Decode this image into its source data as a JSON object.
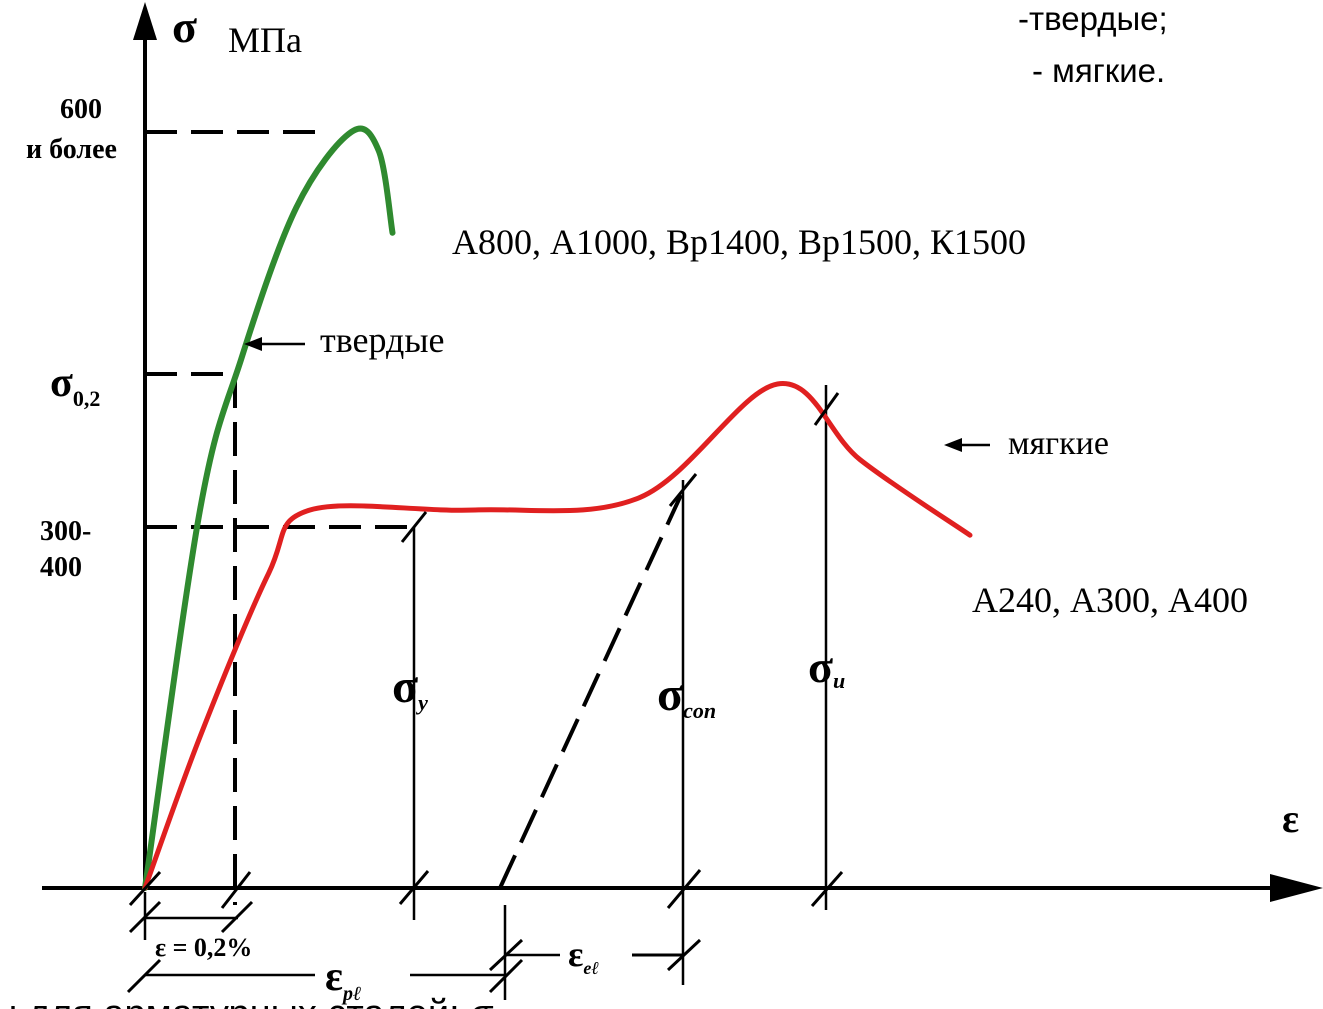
{
  "legend_lines": [
    "-твердые;",
    "- мягкие."
  ],
  "axes": {
    "y_symbol": "σ",
    "y_unit": "МПа",
    "x_symbol": "ε"
  },
  "y_ticks": {
    "top_line1": "600",
    "top_line2": "и более",
    "sigma02_main": "σ",
    "sigma02_sub": "0,2",
    "mid_line1": "300-",
    "mid_line2": "400"
  },
  "curve_labels": {
    "hard_grades": "А800, А1000, Вр1400, Вр1500, К1500",
    "hard_label": "твердые",
    "soft_label": "мягкие",
    "soft_grades": "А240, А300, А400"
  },
  "point_labels": {
    "sigma_y_main": "σ",
    "sigma_y_sub": "y",
    "sigma_con_main": "σ",
    "sigma_con_sub": "con",
    "sigma_u_main": "σ",
    "sigma_u_sub": "u"
  },
  "x_dims": {
    "eps02": "ε = 0,2%",
    "eps_pl_main": "ε",
    "eps_pl_sub": "pℓ",
    "eps_el_main": "ε",
    "eps_el_sub": "eℓ"
  },
  "footer_text": "ы          для арматурных сталей: σ",
  "colors": {
    "hard_curve": "#2f8a2f",
    "soft_curve": "#e02020",
    "ink": "#000000"
  },
  "chart_data": {
    "type": "line",
    "title": "",
    "xlabel": "ε",
    "ylabel": "σ МПа",
    "series": [
      {
        "name": "твердые",
        "color": "#2f8a2f",
        "x": [
          0,
          0.2,
          0.35,
          0.55,
          0.75,
          0.85,
          0.9
        ],
        "y": [
          0,
          300,
          420,
          540,
          600,
          585,
          520
        ]
      },
      {
        "name": "мягкие",
        "color": "#e02020",
        "x": [
          0,
          0.2,
          0.45,
          0.6,
          1.2,
          1.8,
          2.3,
          2.6,
          3.0
        ],
        "y": [
          0,
          120,
          250,
          300,
          300,
          310,
          400,
          340,
          280
        ]
      }
    ]
  }
}
